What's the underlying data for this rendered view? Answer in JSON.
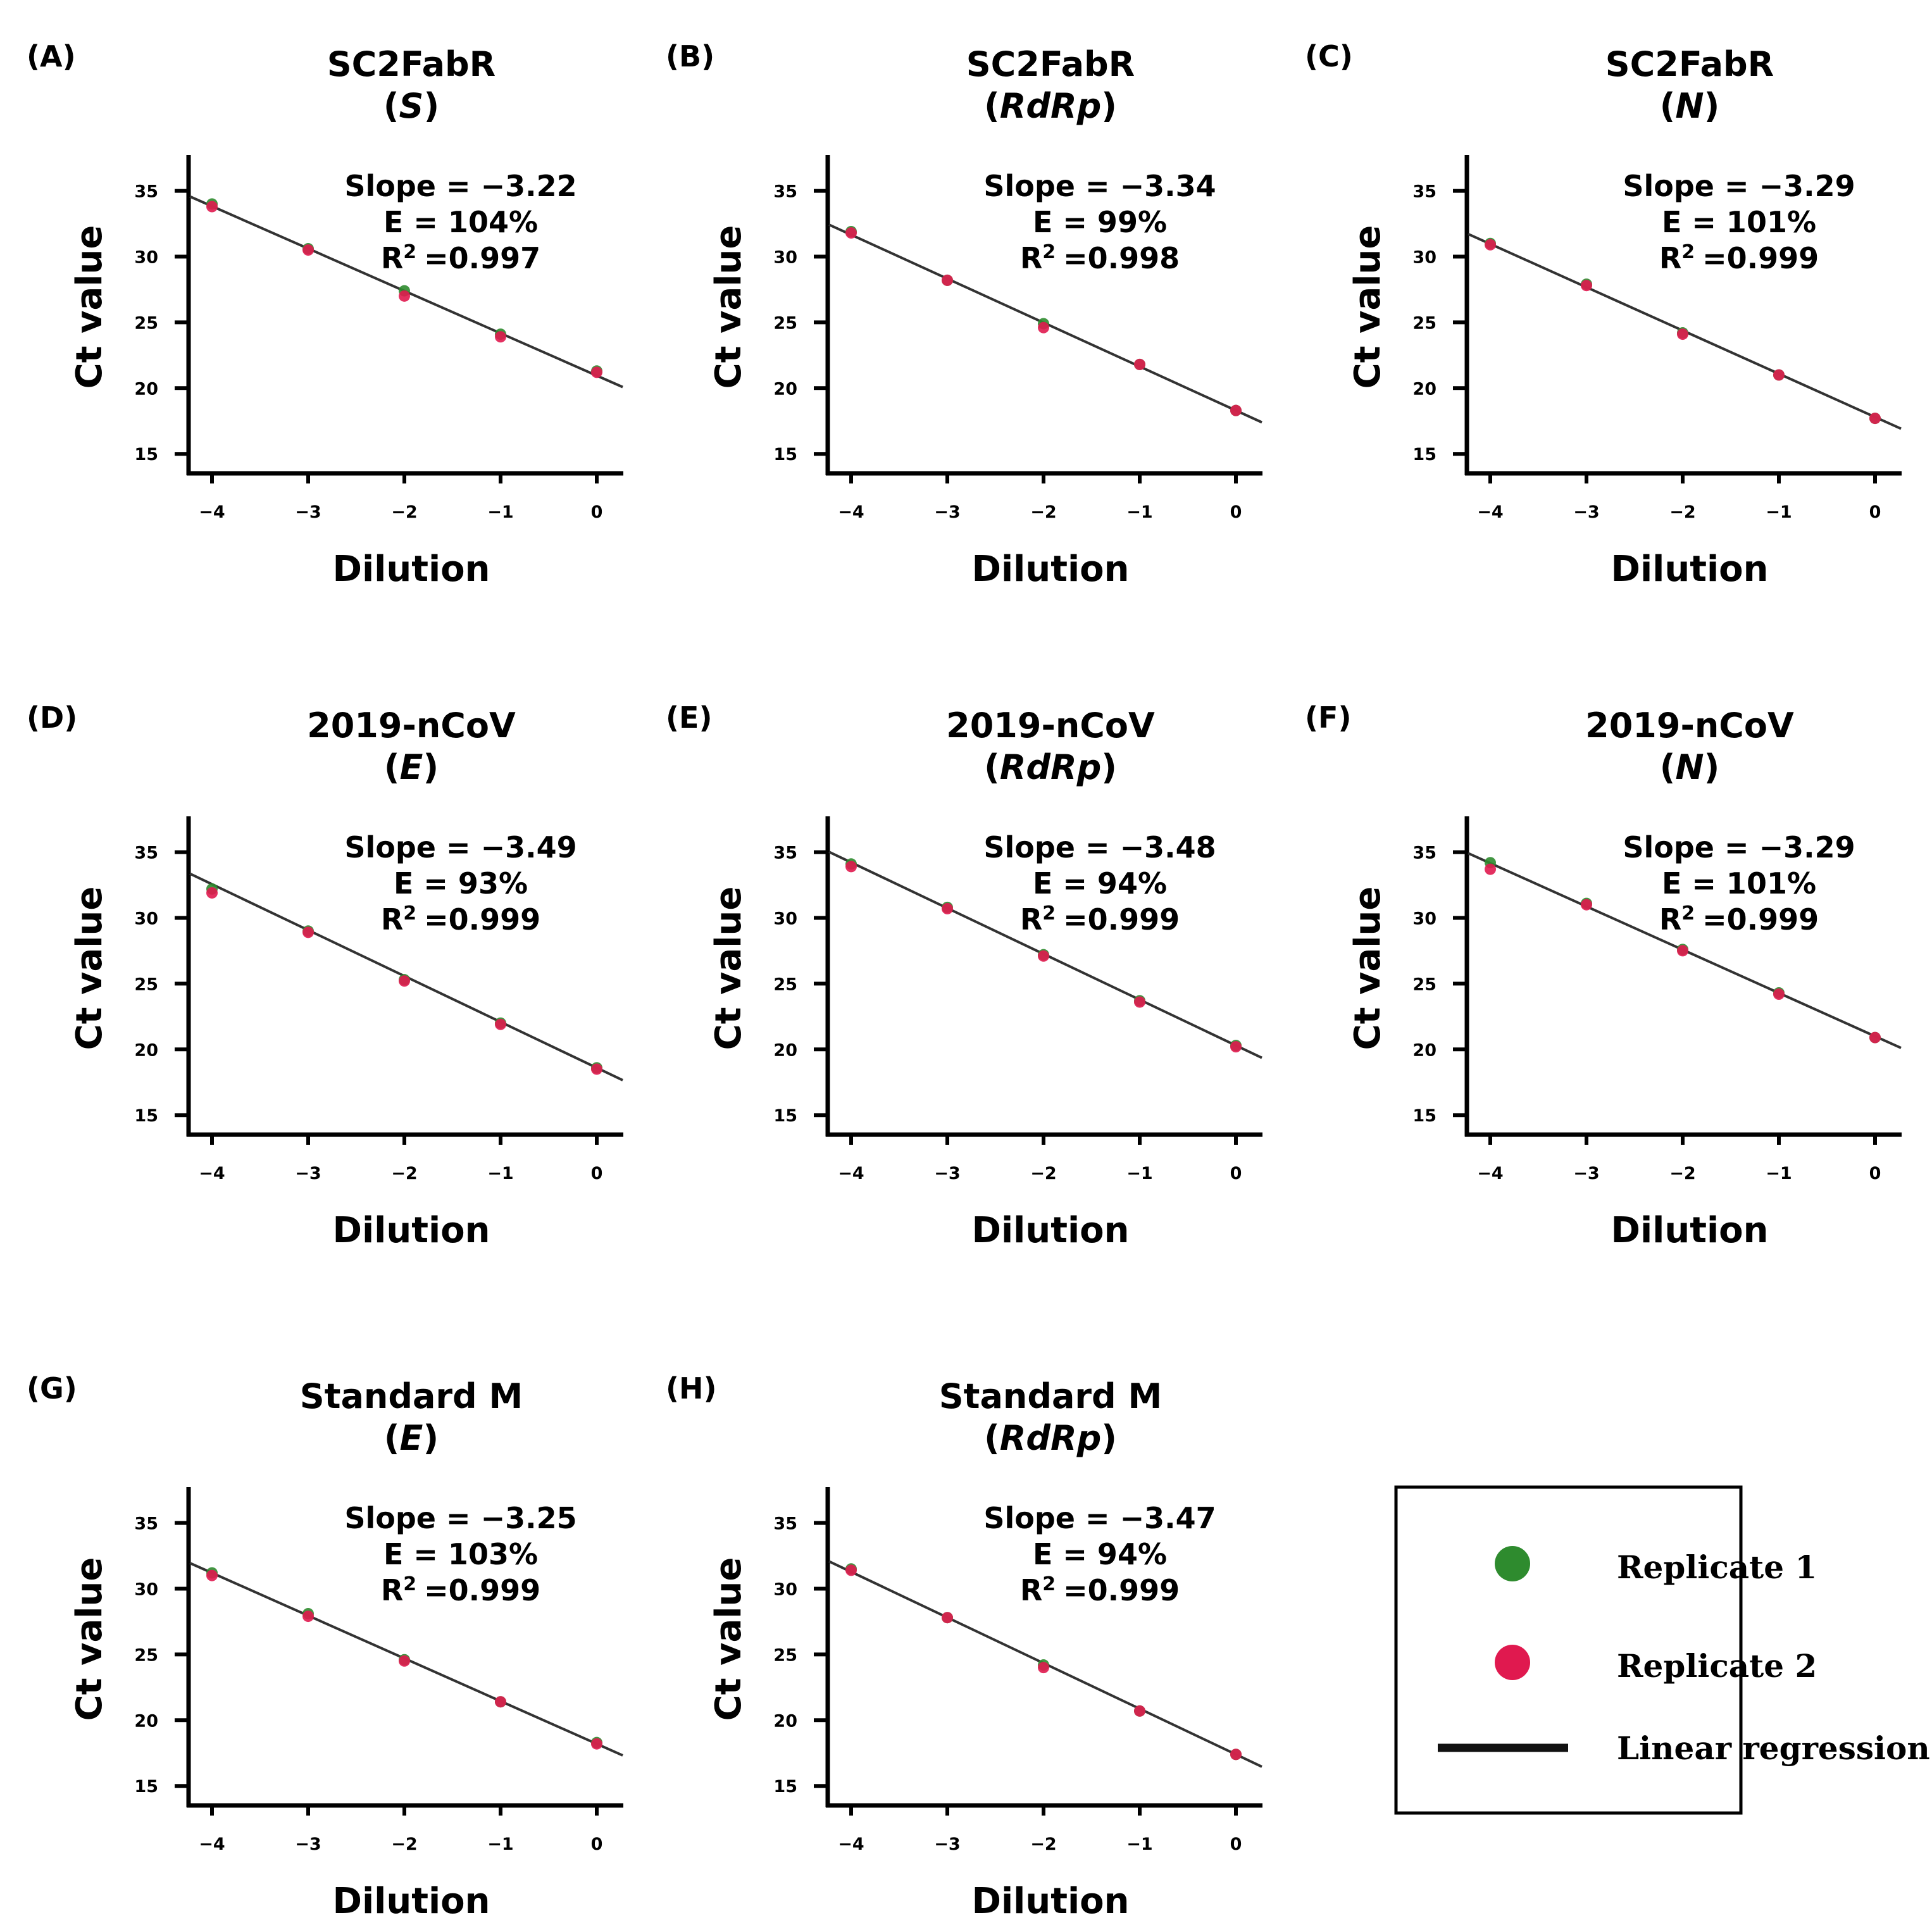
{
  "colors": {
    "replicate1": "#2e8b2e",
    "replicate2": "#e0194f",
    "regression": "#333333",
    "axis": "#000000"
  },
  "legend": {
    "items": [
      {
        "label": "Replicate 1",
        "kind": "point",
        "color": "#2e8b2e"
      },
      {
        "label": "Replicate 2",
        "kind": "point",
        "color": "#e0194f"
      },
      {
        "label": "Linear regression",
        "kind": "line",
        "color": "#111111"
      }
    ]
  },
  "chart_data": [
    {
      "panel": "(A)",
      "type": "scatter",
      "title_line1": "SC2FabR",
      "target": "S",
      "xlabel": "Dilution",
      "ylabel": "Ct value",
      "xticks": [
        "−4",
        "−3",
        "−2",
        "−1",
        "0"
      ],
      "yticks": [
        "35",
        "30",
        "25",
        "20",
        "15"
      ],
      "xlim": [
        -4.25,
        0.25
      ],
      "ylim": [
        14,
        37
      ],
      "slope_text": "Slope = −3.22",
      "e_text": "E = 104%",
      "r2_text": "=0.997",
      "slope": -3.22,
      "intercept": 20.95,
      "series": [
        {
          "name": "Replicate 1",
          "x": [
            -4,
            -3,
            -2,
            -1,
            0
          ],
          "y": [
            34.0,
            30.6,
            27.4,
            24.1,
            21.3
          ]
        },
        {
          "name": "Replicate 2",
          "x": [
            -4,
            -3,
            -2,
            -1,
            0
          ],
          "y": [
            33.8,
            30.5,
            27.0,
            23.9,
            21.2
          ]
        }
      ]
    },
    {
      "panel": "(B)",
      "type": "scatter",
      "title_line1": "SC2FabR",
      "target": "RdRp",
      "xlabel": "Dilution",
      "ylabel": "Ct value",
      "xticks": [
        "−4",
        "−3",
        "−2",
        "−1",
        "0"
      ],
      "yticks": [
        "35",
        "30",
        "25",
        "20",
        "15"
      ],
      "xlim": [
        -4.25,
        0.25
      ],
      "ylim": [
        14,
        37
      ],
      "slope_text": "Slope = −3.34",
      "e_text": "E = 99%",
      "r2_text": "=0.998",
      "slope": -3.34,
      "intercept": 18.3,
      "series": [
        {
          "name": "Replicate 1",
          "x": [
            -4,
            -3,
            -2,
            -1,
            0
          ],
          "y": [
            31.9,
            28.2,
            24.9,
            21.8,
            18.3
          ]
        },
        {
          "name": "Replicate 2",
          "x": [
            -4,
            -3,
            -2,
            -1,
            0
          ],
          "y": [
            31.8,
            28.2,
            24.6,
            21.8,
            18.3
          ]
        }
      ]
    },
    {
      "panel": "(C)",
      "type": "scatter",
      "title_line1": "SC2FabR",
      "target": "N",
      "xlabel": "Dilution",
      "ylabel": "Ct value",
      "xticks": [
        "−4",
        "−3",
        "−2",
        "−1",
        "0"
      ],
      "yticks": [
        "35",
        "30",
        "25",
        "20",
        "15"
      ],
      "xlim": [
        -4.25,
        0.25
      ],
      "ylim": [
        14,
        37
      ],
      "slope_text": "Slope = −3.29",
      "e_text": "E = 101%",
      "r2_text": "=0.999",
      "slope": -3.29,
      "intercept": 17.8,
      "series": [
        {
          "name": "Replicate 1",
          "x": [
            -4,
            -3,
            -2,
            -1,
            0
          ],
          "y": [
            31.0,
            27.9,
            24.2,
            21.0,
            17.7
          ]
        },
        {
          "name": "Replicate 2",
          "x": [
            -4,
            -3,
            -2,
            -1,
            0
          ],
          "y": [
            30.9,
            27.8,
            24.1,
            21.0,
            17.7
          ]
        }
      ]
    },
    {
      "panel": "(D)",
      "type": "scatter",
      "title_line1": "2019-nCoV",
      "target": "E",
      "xlabel": "Dilution",
      "ylabel": "Ct value",
      "xticks": [
        "−4",
        "−3",
        "−2",
        "−1",
        "0"
      ],
      "yticks": [
        "35",
        "30",
        "25",
        "20",
        "15"
      ],
      "xlim": [
        -4.25,
        0.25
      ],
      "ylim": [
        14,
        37
      ],
      "slope_text": "Slope = −3.49",
      "e_text": "E = 93%",
      "r2_text": "=0.999",
      "slope": -3.49,
      "intercept": 18.6,
      "series": [
        {
          "name": "Replicate 1",
          "x": [
            -4,
            -3,
            -2,
            -1,
            0
          ],
          "y": [
            32.2,
            29.0,
            25.3,
            22.0,
            18.6
          ]
        },
        {
          "name": "Replicate 2",
          "x": [
            -4,
            -3,
            -2,
            -1,
            0
          ],
          "y": [
            31.9,
            28.9,
            25.2,
            21.9,
            18.5
          ]
        }
      ]
    },
    {
      "panel": "(E)",
      "type": "scatter",
      "title_line1": "2019-nCoV",
      "target": "RdRp",
      "xlabel": "Dilution",
      "ylabel": "Ct value",
      "xticks": [
        "−4",
        "−3",
        "−2",
        "−1",
        "0"
      ],
      "yticks": [
        "35",
        "30",
        "25",
        "20",
        "15"
      ],
      "xlim": [
        -4.25,
        0.25
      ],
      "ylim": [
        14,
        37
      ],
      "slope_text": "Slope = −3.48",
      "e_text": "E = 94%",
      "r2_text": "=0.999",
      "slope": -3.48,
      "intercept": 20.3,
      "series": [
        {
          "name": "Replicate 1",
          "x": [
            -4,
            -3,
            -2,
            -1,
            0
          ],
          "y": [
            34.1,
            30.8,
            27.2,
            23.7,
            20.3
          ]
        },
        {
          "name": "Replicate 2",
          "x": [
            -4,
            -3,
            -2,
            -1,
            0
          ],
          "y": [
            33.9,
            30.7,
            27.1,
            23.6,
            20.2
          ]
        }
      ]
    },
    {
      "panel": "(F)",
      "type": "scatter",
      "title_line1": "2019-nCoV",
      "target": "N",
      "xlabel": "Dilution",
      "ylabel": "Ct value",
      "xticks": [
        "−4",
        "−3",
        "−2",
        "−1",
        "0"
      ],
      "yticks": [
        "35",
        "30",
        "25",
        "20",
        "15"
      ],
      "xlim": [
        -4.25,
        0.25
      ],
      "ylim": [
        14,
        37
      ],
      "slope_text": "Slope = −3.29",
      "e_text": "E = 101%",
      "r2_text": "=0.999",
      "slope": -3.29,
      "intercept": 21.0,
      "series": [
        {
          "name": "Replicate 1",
          "x": [
            -4,
            -3,
            -2,
            -1,
            0
          ],
          "y": [
            34.2,
            31.1,
            27.6,
            24.3,
            20.9
          ]
        },
        {
          "name": "Replicate 2",
          "x": [
            -4,
            -3,
            -2,
            -1,
            0
          ],
          "y": [
            33.7,
            31.0,
            27.5,
            24.2,
            20.9
          ]
        }
      ]
    },
    {
      "panel": "(G)",
      "type": "scatter",
      "title_line1": "Standard M",
      "target": "E",
      "xlabel": "Dilution",
      "ylabel": "Ct value",
      "xticks": [
        "−4",
        "−3",
        "−2",
        "−1",
        "0"
      ],
      "yticks": [
        "35",
        "30",
        "25",
        "20",
        "15"
      ],
      "xlim": [
        -4.25,
        0.25
      ],
      "ylim": [
        14,
        37
      ],
      "slope_text": "Slope = −3.25",
      "e_text": "E = 103%",
      "r2_text": "=0.999",
      "slope": -3.25,
      "intercept": 18.2,
      "series": [
        {
          "name": "Replicate 1",
          "x": [
            -4,
            -3,
            -2,
            -1,
            0
          ],
          "y": [
            31.2,
            28.1,
            24.6,
            21.4,
            18.3
          ]
        },
        {
          "name": "Replicate 2",
          "x": [
            -4,
            -3,
            -2,
            -1,
            0
          ],
          "y": [
            31.0,
            27.9,
            24.5,
            21.4,
            18.2
          ]
        }
      ]
    },
    {
      "panel": "(H)",
      "type": "scatter",
      "title_line1": "Standard M",
      "target": "RdRp",
      "xlabel": "Dilution",
      "ylabel": "Ct value",
      "xticks": [
        "−4",
        "−3",
        "−2",
        "−1",
        "0"
      ],
      "yticks": [
        "35",
        "30",
        "25",
        "20",
        "15"
      ],
      "xlim": [
        -4.25,
        0.25
      ],
      "ylim": [
        14,
        37
      ],
      "slope_text": "Slope = −3.47",
      "e_text": "E = 94%",
      "r2_text": "=0.999",
      "slope": -3.47,
      "intercept": 17.4,
      "series": [
        {
          "name": "Replicate 1",
          "x": [
            -4,
            -3,
            -2,
            -1,
            0
          ],
          "y": [
            31.5,
            27.8,
            24.2,
            20.7,
            17.4
          ]
        },
        {
          "name": "Replicate 2",
          "x": [
            -4,
            -3,
            -2,
            -1,
            0
          ],
          "y": [
            31.4,
            27.8,
            24.0,
            20.7,
            17.4
          ]
        }
      ]
    }
  ]
}
